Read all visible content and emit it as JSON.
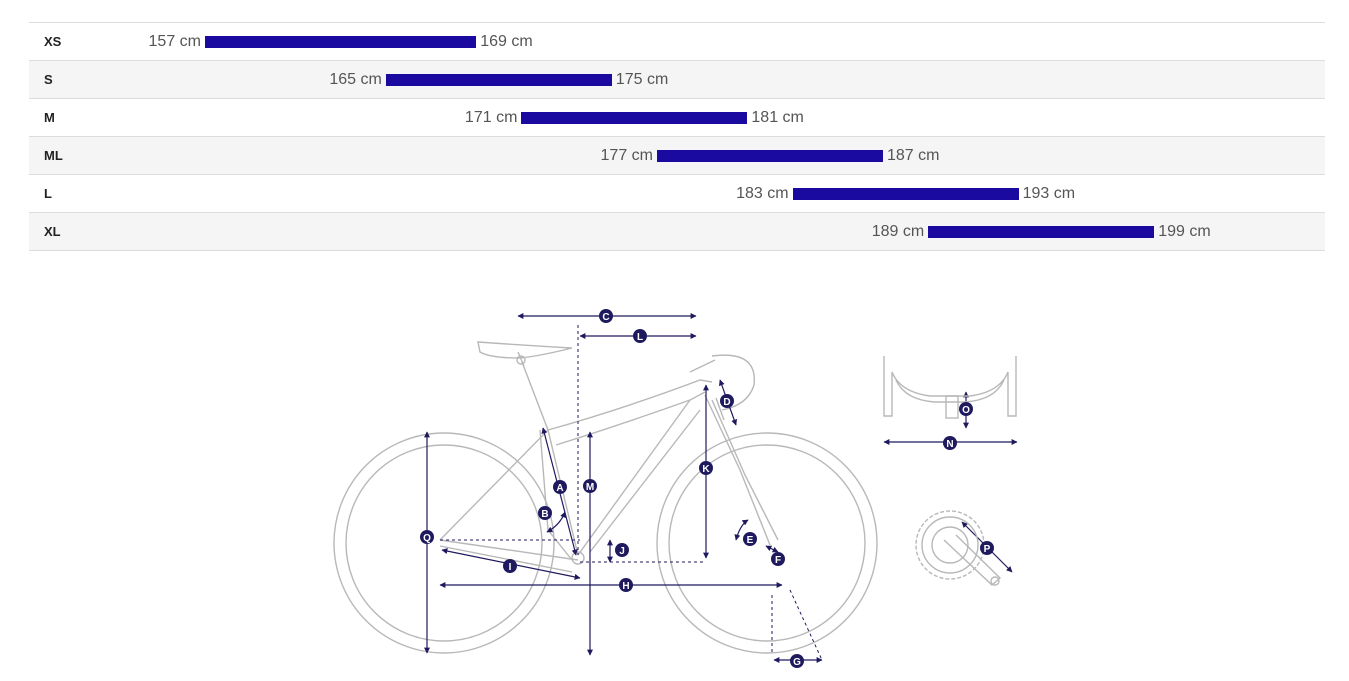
{
  "sizes": [
    {
      "label": "XS",
      "min": "157 cm",
      "max": "169 cm",
      "min_cm": 157,
      "max_cm": 169
    },
    {
      "label": "S",
      "min": "165 cm",
      "max": "175 cm",
      "min_cm": 165,
      "max_cm": 175
    },
    {
      "label": "M",
      "min": "171 cm",
      "max": "181 cm",
      "min_cm": 171,
      "max_cm": 181
    },
    {
      "label": "ML",
      "min": "177 cm",
      "max": "187 cm",
      "min_cm": 177,
      "max_cm": 187
    },
    {
      "label": "L",
      "min": "183 cm",
      "max": "193 cm",
      "min_cm": 183,
      "max_cm": 193
    },
    {
      "label": "XL",
      "min": "189 cm",
      "max": "199 cm",
      "min_cm": 189,
      "max_cm": 199
    }
  ],
  "bar_color": "#1a0aa0",
  "annotation_color": "#1f1a5e",
  "geometry_labels": {
    "A": "A",
    "B": "B",
    "C": "C",
    "D": "D",
    "E": "E",
    "F": "F",
    "G": "G",
    "H": "H",
    "I": "I",
    "J": "J",
    "K": "K",
    "L": "L",
    "M": "M",
    "N": "N",
    "O": "O",
    "P": "P",
    "Q": "Q"
  }
}
